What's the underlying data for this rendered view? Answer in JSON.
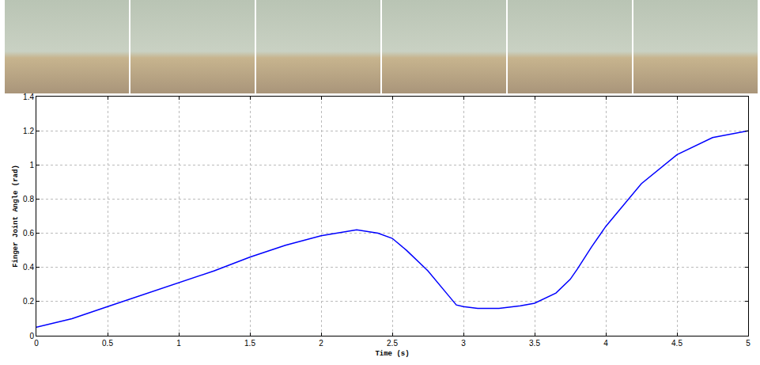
{
  "chart_data": {
    "type": "line",
    "x_label": "Time (s)",
    "y_label": "Finger Joint Angle (rad)",
    "x": [
      0,
      0.25,
      0.5,
      0.75,
      1,
      1.25,
      1.5,
      1.75,
      2,
      2.1,
      2.25,
      2.4,
      2.5,
      2.6,
      2.75,
      2.9,
      2.95,
      3,
      3.1,
      3.25,
      3.4,
      3.5,
      3.55,
      3.65,
      3.75,
      3.8,
      3.9,
      4,
      4.25,
      4.5,
      4.75,
      5
    ],
    "values": [
      0.05,
      0.1,
      0.17,
      0.24,
      0.31,
      0.38,
      0.46,
      0.53,
      0.585,
      0.6,
      0.62,
      0.6,
      0.57,
      0.5,
      0.38,
      0.23,
      0.18,
      0.17,
      0.16,
      0.16,
      0.175,
      0.19,
      0.21,
      0.25,
      0.33,
      0.39,
      0.52,
      0.64,
      0.89,
      1.06,
      1.16,
      1.2
    ],
    "color": "#0000ff",
    "xlim": [
      0,
      5
    ],
    "xticks": [
      0,
      0.5,
      1,
      1.5,
      2,
      2.5,
      3,
      3.5,
      4,
      4.5,
      5
    ],
    "ylim": [
      0,
      1.4
    ],
    "yticks": [
      0,
      0.2,
      0.4,
      0.6,
      0.8,
      1,
      1.2,
      1.4
    ],
    "grid": true
  }
}
